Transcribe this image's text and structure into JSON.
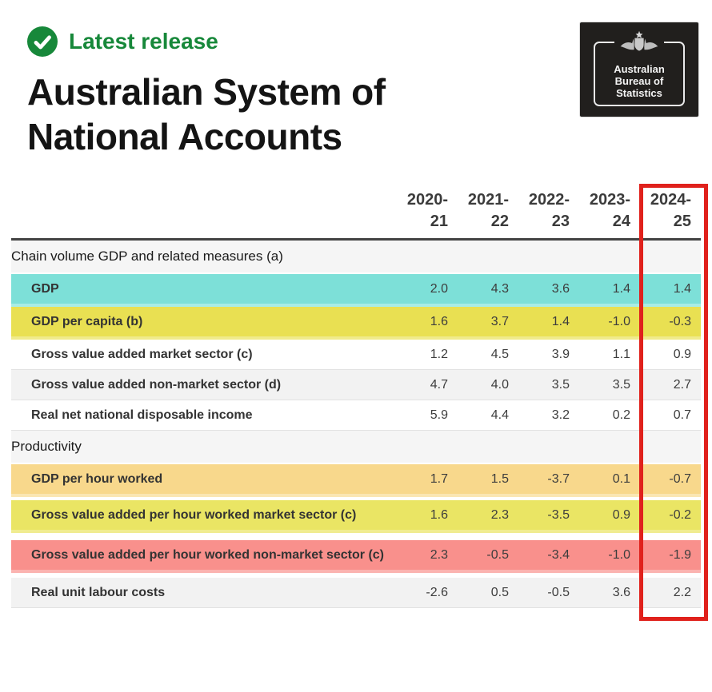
{
  "header": {
    "badge_label": "Latest release",
    "title": "Australian System of National Accounts",
    "logo_lines": [
      "Australian",
      "Bureau of",
      "Statistics"
    ]
  },
  "chart_data": {
    "type": "table",
    "columns": [
      "2020-21",
      "2021-22",
      "2022-23",
      "2023-24",
      "2024-25"
    ],
    "annotated_column": "2024-25",
    "sections": [
      {
        "heading": "Chain volume GDP and related measures (a)",
        "rows": [
          {
            "label": "GDP",
            "values": [
              2.0,
              4.3,
              3.6,
              1.4,
              1.4
            ],
            "highlight": "teal"
          },
          {
            "label": "GDP per capita (b)",
            "values": [
              1.6,
              3.7,
              1.4,
              -1.0,
              -0.3
            ],
            "highlight": "yellow"
          },
          {
            "label": "Gross value added market sector (c)",
            "values": [
              1.2,
              4.5,
              3.9,
              1.1,
              0.9
            ],
            "highlight": "none"
          },
          {
            "label": "Gross value added non-market sector (d)",
            "values": [
              4.7,
              4.0,
              3.5,
              3.5,
              2.7
            ],
            "highlight": "gray"
          },
          {
            "label": "Real net national disposable income",
            "values": [
              5.9,
              4.4,
              3.2,
              0.2,
              0.7
            ],
            "highlight": "none"
          }
        ]
      },
      {
        "heading": "Productivity",
        "rows": [
          {
            "label": "GDP per hour worked",
            "values": [
              1.7,
              1.5,
              -3.7,
              0.1,
              -0.7
            ],
            "highlight": "orange"
          },
          {
            "label": "Gross value added per hour worked market sector (c)",
            "values": [
              1.6,
              2.3,
              -3.5,
              0.9,
              -0.2
            ],
            "highlight": "yellowgreen"
          },
          {
            "label": "Gross value added per hour worked non-market sector (c)",
            "values": [
              2.3,
              -0.5,
              -3.4,
              -1.0,
              -1.9
            ],
            "highlight": "red"
          },
          {
            "label": "Real unit labour costs",
            "values": [
              -2.6,
              0.5,
              -0.5,
              3.6,
              2.2
            ],
            "highlight": "gray"
          }
        ]
      }
    ]
  },
  "colors": {
    "accent_green": "#17883a",
    "row_teal": "#7de0d8",
    "row_yellow": "#e9e052",
    "row_orange": "#f8d88c",
    "row_yellowgreen": "#eae564",
    "row_red": "#f9908c",
    "row_gray": "#f2f2f2",
    "section_bg": "#f5f5f5",
    "annotation_red": "#e0211c",
    "logo_bg": "#211f1d"
  }
}
